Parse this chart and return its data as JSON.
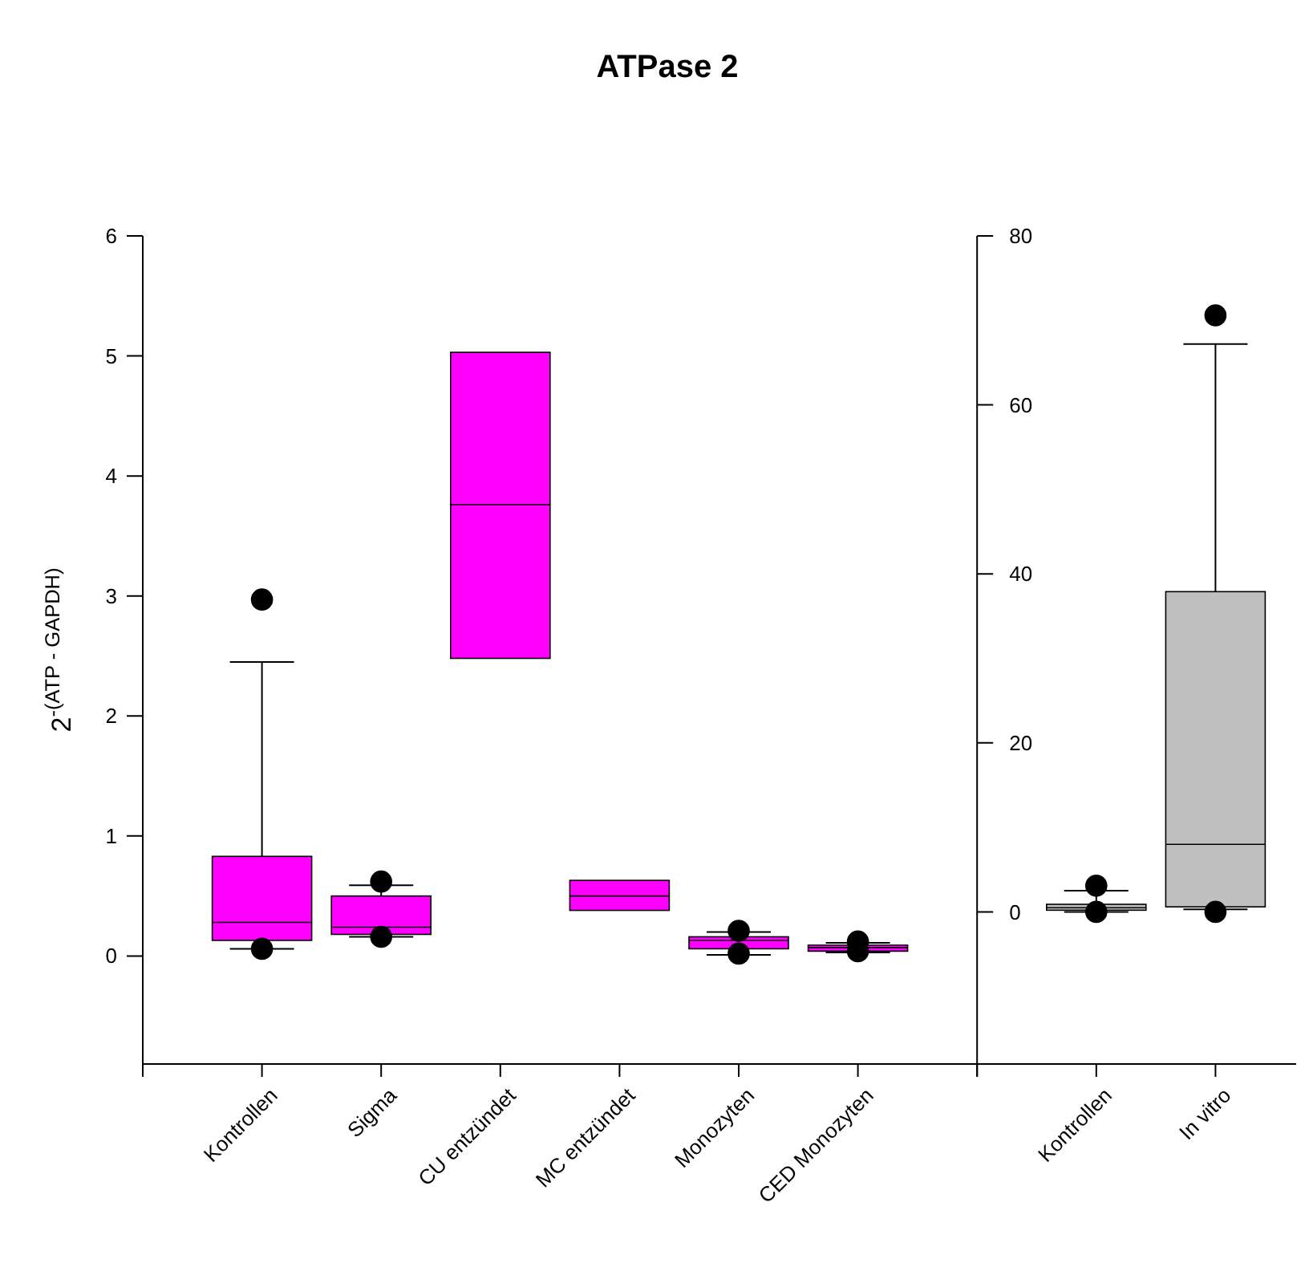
{
  "chart_data": [
    {
      "type": "box",
      "title": "ATPase 2",
      "ylabel": "2$^{-(ATP - GAPDH)}$",
      "categories": [
        "Kontrollen",
        "Sigma",
        "CU entzündet",
        "MC entzündet",
        "Monozyten",
        "CED Monozyten"
      ],
      "ylim": [
        -0.9,
        6
      ],
      "yticks": [
        0,
        1,
        2,
        3,
        4,
        5,
        6
      ],
      "marker": "circle",
      "series": [
        {
          "color": "#ff00ff",
          "boxes": [
            {
              "low": 0.06,
              "q1": 0.13,
              "median": 0.28,
              "q3": 0.83,
              "high": 2.45,
              "outliers": [
                2.97,
                0.06
              ]
            },
            {
              "low": 0.16,
              "q1": 0.18,
              "median": 0.24,
              "q3": 0.5,
              "high": 0.59,
              "outliers": [
                0.62,
                0.16
              ]
            },
            {
              "low": 2.48,
              "q1": 2.48,
              "median": 3.76,
              "q3": 5.03,
              "high": 5.03
            },
            {
              "low": 0.38,
              "q1": 0.38,
              "median": 0.5,
              "q3": 0.63,
              "high": 0.63
            },
            {
              "low": 0.01,
              "q1": 0.06,
              "median": 0.13,
              "q3": 0.16,
              "high": 0.2,
              "outliers": [
                0.21,
                0.02
              ]
            },
            {
              "low": 0.03,
              "q1": 0.04,
              "median": 0.07,
              "q3": 0.09,
              "high": 0.11,
              "outliers": [
                0.12,
                0.04
              ]
            }
          ]
        }
      ]
    },
    {
      "type": "box",
      "categories": [
        "Kontrollen",
        "In vitro"
      ],
      "ylim": [
        -18,
        80
      ],
      "yticks": [
        0,
        20,
        40,
        60,
        80
      ],
      "marker": "circle",
      "series": [
        {
          "color": "#c0c0c0",
          "boxes": [
            {
              "low": 0,
              "q1": 0.2,
              "median": 0.5,
              "q3": 0.9,
              "high": 2.5,
              "outliers": [
                3.1,
                0
              ]
            },
            {
              "low": 0.3,
              "q1": 0.6,
              "median": 8,
              "q3": 37.9,
              "high": 67.2,
              "outliers": [
                70.6,
                0
              ]
            }
          ]
        }
      ]
    }
  ]
}
